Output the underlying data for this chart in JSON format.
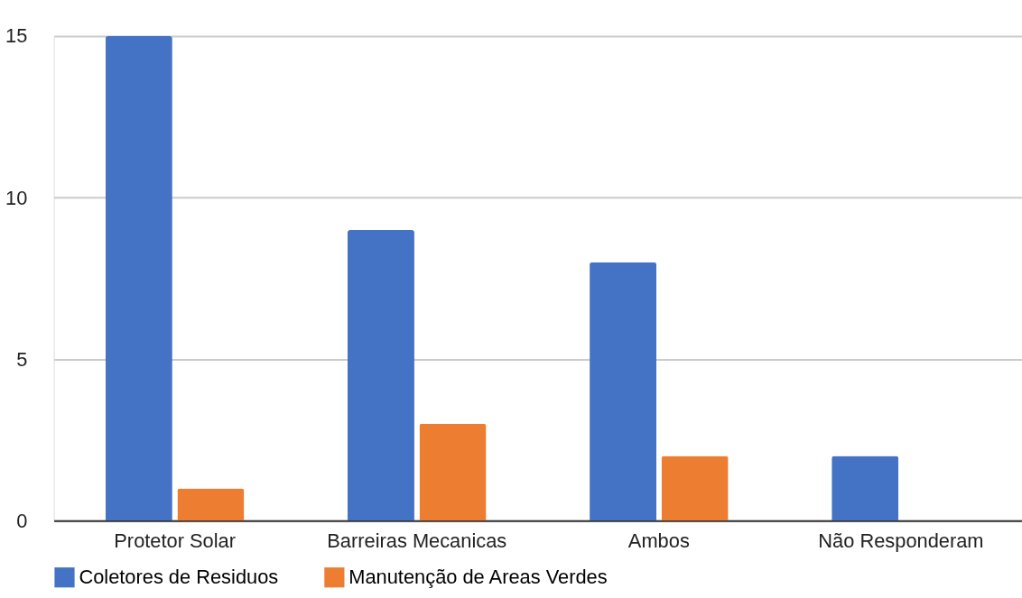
{
  "chart_data": {
    "type": "bar",
    "categories": [
      "Protetor Solar",
      "Barreiras Mecanicas",
      "Ambos",
      "Não Responderam"
    ],
    "series": [
      {
        "name": "Coletores de Residuos",
        "color": "#4472c4",
        "values": [
          15,
          9,
          8,
          2
        ]
      },
      {
        "name": "Manutenção de Areas Verdes",
        "color": "#ed7d31",
        "values": [
          1,
          3,
          2,
          0
        ]
      }
    ],
    "ylim": [
      0,
      15
    ],
    "yticks": [
      0,
      5,
      10,
      15
    ],
    "grid": "y",
    "legend": "bottom"
  }
}
